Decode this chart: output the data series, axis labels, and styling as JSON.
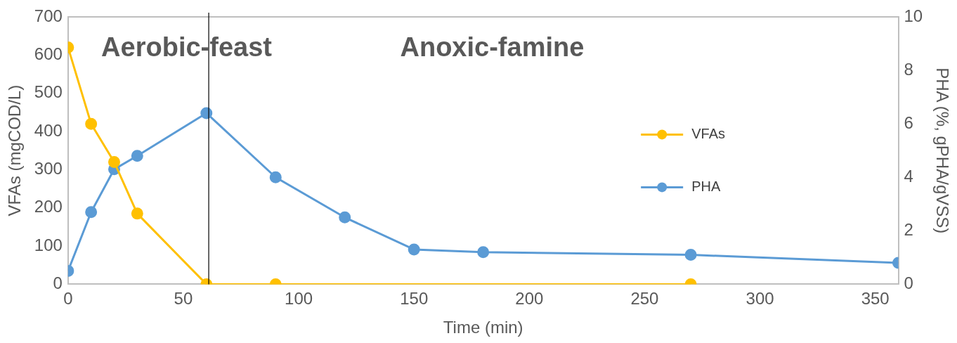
{
  "chart_data": {
    "type": "line",
    "xlabel": "Time (min)",
    "ylabel": "VFAs (mgCOD/L)",
    "y2label": "PHA (%, gPHA/gVSS)",
    "annotations": [
      "Aerobic-feast",
      "Anoxic-famine"
    ],
    "series": [
      {
        "name": "VFAs",
        "color": "#ffc000",
        "x": [
          0,
          10,
          20,
          30,
          60,
          90,
          270
        ],
        "values": [
          620,
          420,
          320,
          185,
          0,
          0,
          0
        ]
      },
      {
        "name": "PHA",
        "color": "#5b9bd5",
        "axis": "y2",
        "x": [
          0,
          10,
          20,
          30,
          60,
          90,
          120,
          150,
          180,
          270,
          360
        ],
        "values": [
          0.5,
          2.7,
          4.3,
          4.8,
          6.4,
          4.0,
          2.5,
          1.3,
          1.2,
          1.1,
          0.8
        ]
      }
    ],
    "xlim": [
      0,
      360
    ],
    "xticks": [
      0,
      50,
      100,
      150,
      200,
      250,
      300,
      350
    ],
    "ylim": [
      0,
      700
    ],
    "yticks": [
      0,
      100,
      200,
      300,
      400,
      500,
      600,
      700
    ],
    "y2lim": [
      0,
      10
    ],
    "y2ticks": [
      0,
      2,
      4,
      6,
      8,
      10
    ],
    "ref_lines": [
      {
        "axis": "x",
        "value": 61,
        "color": "#000000"
      }
    ],
    "grid": false,
    "legend": "right",
    "marker": "circle",
    "line_style": "solid"
  }
}
